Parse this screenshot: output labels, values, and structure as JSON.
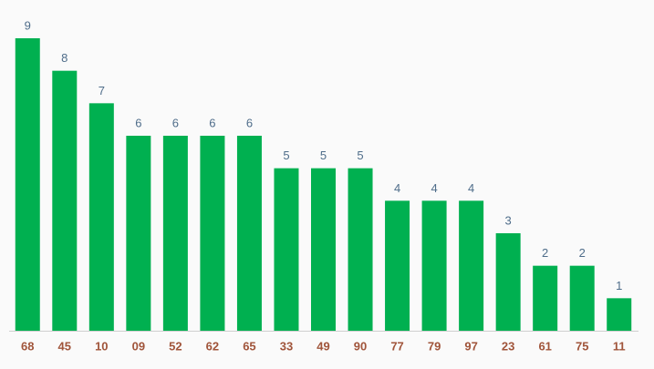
{
  "chart_data": {
    "type": "bar",
    "categories": [
      "68",
      "45",
      "10",
      "09",
      "52",
      "62",
      "65",
      "33",
      "49",
      "90",
      "77",
      "79",
      "97",
      "23",
      "61",
      "75",
      "11"
    ],
    "values": [
      9,
      8,
      7,
      6,
      6,
      6,
      6,
      5,
      5,
      5,
      4,
      4,
      4,
      3,
      2,
      2,
      1
    ],
    "color": "#00b050",
    "ylim": [
      0,
      9
    ]
  }
}
